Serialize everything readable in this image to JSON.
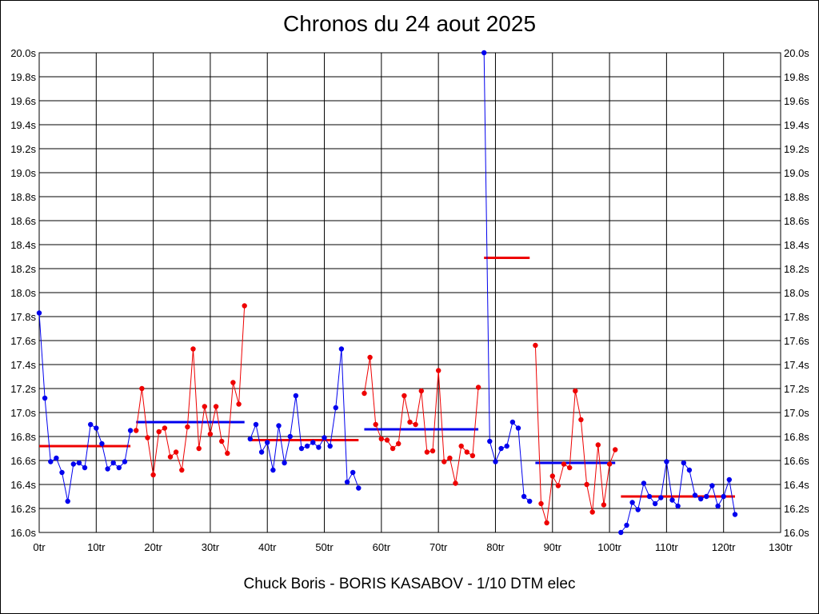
{
  "title": "Chronos du 24 aout 2025",
  "subtitle": "Chuck Boris - BORIS KASABOV - 1/10 DTM elec",
  "colors": {
    "red": "#ee0000",
    "blue": "#0000ee",
    "grid": "#000000",
    "background": "#ffffff"
  },
  "chart_data": {
    "type": "line",
    "title": "Chronos du 24 aout 2025",
    "xlabel": "",
    "ylabel": "",
    "xlim": [
      0,
      130
    ],
    "ylim": [
      16.0,
      20.0
    ],
    "grid": true,
    "legend": "none",
    "x_ticks": [
      "0tr",
      "10tr",
      "20tr",
      "30tr",
      "40tr",
      "50tr",
      "60tr",
      "70tr",
      "80tr",
      "90tr",
      "100tr",
      "110tr",
      "120tr",
      "130tr"
    ],
    "x_tick_values": [
      0,
      10,
      20,
      30,
      40,
      50,
      60,
      70,
      80,
      90,
      100,
      110,
      120,
      130
    ],
    "y_ticks": [
      "16.0s",
      "16.2s",
      "16.4s",
      "16.6s",
      "16.8s",
      "17.0s",
      "17.2s",
      "17.4s",
      "17.6s",
      "17.8s",
      "18.0s",
      "18.2s",
      "18.4s",
      "18.6s",
      "18.8s",
      "19.0s",
      "19.2s",
      "19.4s",
      "19.6s",
      "19.8s",
      "20.0s"
    ],
    "y_tick_values": [
      16.0,
      16.2,
      16.4,
      16.6,
      16.8,
      17.0,
      17.2,
      17.4,
      17.6,
      17.8,
      18.0,
      18.2,
      18.4,
      18.6,
      18.8,
      19.0,
      19.2,
      19.4,
      19.6,
      19.8,
      20.0
    ],
    "series": [
      {
        "color": "blue",
        "x_start": 0,
        "values": [
          17.83,
          17.12,
          16.59,
          16.62,
          16.5,
          16.26,
          16.57,
          16.58,
          16.54,
          16.9,
          16.87,
          16.74,
          16.53,
          16.58,
          16.54,
          16.59,
          16.85
        ]
      },
      {
        "color": "red",
        "x_start": 17,
        "values": [
          16.85,
          17.2,
          16.79,
          16.48,
          16.84,
          16.87,
          16.63,
          16.67,
          16.52,
          16.88,
          17.53,
          16.7,
          17.05,
          16.82,
          17.05,
          16.76,
          16.66,
          17.25,
          17.07,
          17.89
        ]
      },
      {
        "color": "blue",
        "x_start": 37,
        "values": [
          16.78,
          16.9,
          16.67,
          16.75,
          16.52,
          16.89,
          16.58,
          16.8,
          17.14,
          16.7,
          16.72,
          16.75,
          16.71,
          16.79,
          16.72,
          17.04,
          17.53,
          16.42,
          16.5,
          16.37
        ]
      },
      {
        "color": "red",
        "x_start": 57,
        "values": [
          17.16,
          17.46,
          16.9,
          16.78,
          16.77,
          16.7,
          16.74,
          17.14,
          16.92,
          16.9,
          17.18,
          16.67,
          16.68,
          17.35,
          16.59,
          16.62,
          16.41,
          16.72,
          16.67,
          16.64,
          17.21
        ]
      },
      {
        "color": "blue",
        "x_start": 78,
        "values": [
          20.0,
          16.76,
          16.59,
          16.7,
          16.72,
          16.92,
          16.87,
          16.3,
          16.26
        ]
      },
      {
        "color": "red",
        "x_start": 87,
        "values": [
          17.56,
          16.24,
          16.08,
          16.47,
          16.39,
          16.57,
          16.54,
          17.18,
          16.94,
          16.4,
          16.17,
          16.73,
          16.23,
          16.57,
          16.69
        ]
      },
      {
        "color": "blue",
        "x_start": 102,
        "values": [
          16.0,
          16.06,
          16.25,
          16.19,
          16.41,
          16.3,
          16.24,
          16.29,
          16.59,
          16.27,
          16.22,
          16.58,
          16.52,
          16.31,
          16.28,
          16.3,
          16.39,
          16.22,
          16.3,
          16.44,
          16.15
        ]
      }
    ],
    "averages": [
      {
        "color": "red",
        "x": [
          0,
          16
        ],
        "y": 16.72
      },
      {
        "color": "blue",
        "x": [
          17,
          36
        ],
        "y": 16.92
      },
      {
        "color": "red",
        "x": [
          37,
          56
        ],
        "y": 16.77
      },
      {
        "color": "blue",
        "x": [
          57,
          77
        ],
        "y": 16.86
      },
      {
        "color": "red",
        "x": [
          78,
          86
        ],
        "y": 18.29
      },
      {
        "color": "blue",
        "x": [
          87,
          101
        ],
        "y": 16.58
      },
      {
        "color": "red",
        "x": [
          102,
          122
        ],
        "y": 16.3
      }
    ]
  }
}
